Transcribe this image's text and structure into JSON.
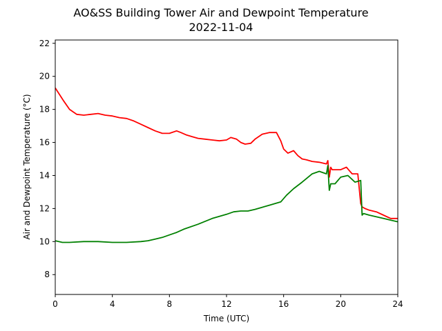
{
  "chart_data": {
    "type": "line",
    "title": "AO&SS Building Tower Air and Dewpoint Temperature",
    "subtitle": "2022-11-04",
    "xlabel": "Time (UTC)",
    "ylabel": "Air and Dewpoint Temperature (°C)",
    "xlim": [
      0,
      24
    ],
    "ylim": [
      6.8,
      22.2
    ],
    "xticks": [
      0,
      4,
      8,
      12,
      16,
      20,
      24
    ],
    "yticks": [
      8,
      10,
      12,
      14,
      16,
      18,
      20,
      22
    ],
    "grid": false,
    "legend": "none",
    "series": [
      {
        "color": "#ff0000",
        "x": [
          0,
          0.3,
          0.6,
          1.0,
          1.5,
          2.0,
          2.5,
          3.0,
          3.5,
          4.0,
          4.5,
          5.0,
          5.5,
          6.0,
          6.5,
          7.0,
          7.5,
          8.0,
          8.5,
          8.8,
          9.2,
          9.6,
          10.0,
          10.5,
          11.0,
          11.5,
          12.0,
          12.3,
          12.7,
          13.0,
          13.3,
          13.7,
          14.0,
          14.5,
          15.0,
          15.5,
          15.8,
          16.0,
          16.3,
          16.7,
          17.0,
          17.3,
          17.6,
          18.0,
          18.5,
          19.0,
          19.1,
          19.2,
          19.3,
          19.4,
          19.6,
          20.0,
          20.4,
          20.6,
          20.8,
          21.0,
          21.2,
          21.4,
          21.5,
          21.7,
          22.0,
          22.5,
          23.0,
          23.5,
          24.0
        ],
        "values": [
          19.3,
          18.9,
          18.5,
          18.0,
          17.7,
          17.65,
          17.7,
          17.75,
          17.65,
          17.6,
          17.5,
          17.45,
          17.3,
          17.1,
          16.9,
          16.7,
          16.55,
          16.55,
          16.7,
          16.6,
          16.45,
          16.35,
          16.25,
          16.2,
          16.15,
          16.1,
          16.15,
          16.3,
          16.2,
          16.0,
          15.9,
          15.95,
          16.2,
          16.5,
          16.6,
          16.6,
          16.1,
          15.6,
          15.35,
          15.5,
          15.2,
          15.0,
          14.95,
          14.85,
          14.8,
          14.7,
          14.9,
          13.9,
          14.5,
          14.35,
          14.35,
          14.35,
          14.5,
          14.3,
          14.1,
          14.1,
          14.1,
          12.3,
          12.1,
          12.0,
          11.9,
          11.8,
          11.6,
          11.4,
          11.4
        ]
      },
      {
        "color": "#008000",
        "x": [
          0,
          0.5,
          1.0,
          2.0,
          3.0,
          4.0,
          5.0,
          6.0,
          6.5,
          7.0,
          7.5,
          8.0,
          8.5,
          9.0,
          10.0,
          11.0,
          12.0,
          12.5,
          13.0,
          13.5,
          14.0,
          15.0,
          15.8,
          16.2,
          16.7,
          17.3,
          18.0,
          18.5,
          19.0,
          19.1,
          19.2,
          19.3,
          19.6,
          20.0,
          20.5,
          21.0,
          21.4,
          21.5,
          21.6,
          22.0,
          22.5,
          23.0,
          23.5,
          24.0
        ],
        "values": [
          10.05,
          9.95,
          9.95,
          10.0,
          10.0,
          9.95,
          9.95,
          10.0,
          10.05,
          10.15,
          10.25,
          10.4,
          10.55,
          10.75,
          11.05,
          11.4,
          11.65,
          11.8,
          11.85,
          11.85,
          11.95,
          12.2,
          12.4,
          12.8,
          13.2,
          13.6,
          14.1,
          14.25,
          14.1,
          14.6,
          13.1,
          13.5,
          13.5,
          13.9,
          14.0,
          13.6,
          13.7,
          11.6,
          11.7,
          11.6,
          11.5,
          11.4,
          11.3,
          11.2
        ]
      }
    ]
  }
}
